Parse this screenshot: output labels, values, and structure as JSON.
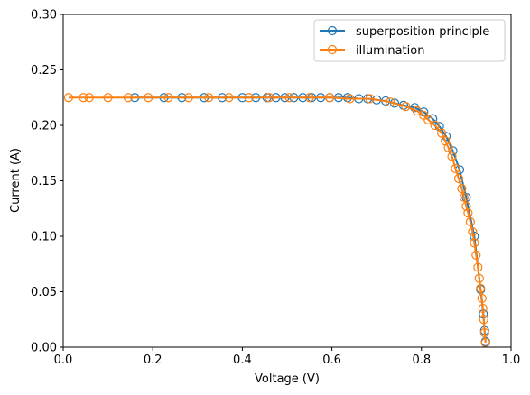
{
  "chart_data": {
    "type": "line",
    "xlabel": "Voltage (V)",
    "ylabel": "Current (A)",
    "xlim": [
      0.0,
      1.0
    ],
    "ylim": [
      0.0,
      0.3
    ],
    "x_ticks": [
      "0.0",
      "0.2",
      "0.4",
      "0.6",
      "0.8",
      "1.0"
    ],
    "y_ticks": [
      "0.00",
      "0.05",
      "0.10",
      "0.15",
      "0.20",
      "0.25",
      "0.30"
    ],
    "grid": false,
    "legend_position": "top-right",
    "series": [
      {
        "name": "superposition principle",
        "color": "#1f77b4",
        "marker": "open-circle",
        "x": [
          0.16,
          0.225,
          0.265,
          0.315,
          0.355,
          0.4,
          0.43,
          0.455,
          0.475,
          0.495,
          0.515,
          0.535,
          0.555,
          0.575,
          0.595,
          0.615,
          0.635,
          0.66,
          0.68,
          0.7,
          0.72,
          0.74,
          0.76,
          0.785,
          0.805,
          0.825,
          0.84,
          0.855,
          0.87,
          0.885,
          0.9,
          0.918,
          0.932,
          0.938,
          0.941,
          0.943
        ],
        "y": [
          0.225,
          0.225,
          0.225,
          0.225,
          0.225,
          0.225,
          0.225,
          0.225,
          0.225,
          0.225,
          0.225,
          0.225,
          0.225,
          0.225,
          0.225,
          0.225,
          0.225,
          0.224,
          0.224,
          0.223,
          0.222,
          0.22,
          0.218,
          0.216,
          0.212,
          0.206,
          0.199,
          0.19,
          0.177,
          0.16,
          0.135,
          0.1,
          0.052,
          0.03,
          0.015,
          0.005
        ]
      },
      {
        "name": "illumination",
        "color": "#ff7f0e",
        "marker": "open-circle",
        "x": [
          0.012,
          0.045,
          0.058,
          0.1,
          0.145,
          0.19,
          0.235,
          0.28,
          0.325,
          0.37,
          0.415,
          0.46,
          0.505,
          0.55,
          0.595,
          0.64,
          0.685,
          0.73,
          0.765,
          0.79,
          0.805,
          0.815,
          0.83,
          0.845,
          0.853,
          0.86,
          0.868,
          0.876,
          0.883,
          0.89,
          0.895,
          0.9,
          0.904,
          0.909,
          0.914,
          0.918,
          0.922,
          0.926,
          0.929,
          0.932,
          0.935,
          0.937,
          0.939,
          0.941,
          0.943
        ],
        "y": [
          0.225,
          0.225,
          0.225,
          0.225,
          0.225,
          0.225,
          0.225,
          0.225,
          0.225,
          0.225,
          0.225,
          0.225,
          0.225,
          0.225,
          0.225,
          0.224,
          0.224,
          0.221,
          0.217,
          0.213,
          0.209,
          0.205,
          0.2,
          0.193,
          0.186,
          0.18,
          0.172,
          0.161,
          0.152,
          0.143,
          0.135,
          0.127,
          0.121,
          0.113,
          0.104,
          0.094,
          0.083,
          0.072,
          0.062,
          0.053,
          0.044,
          0.035,
          0.025,
          0.013,
          0.004
        ]
      }
    ]
  }
}
